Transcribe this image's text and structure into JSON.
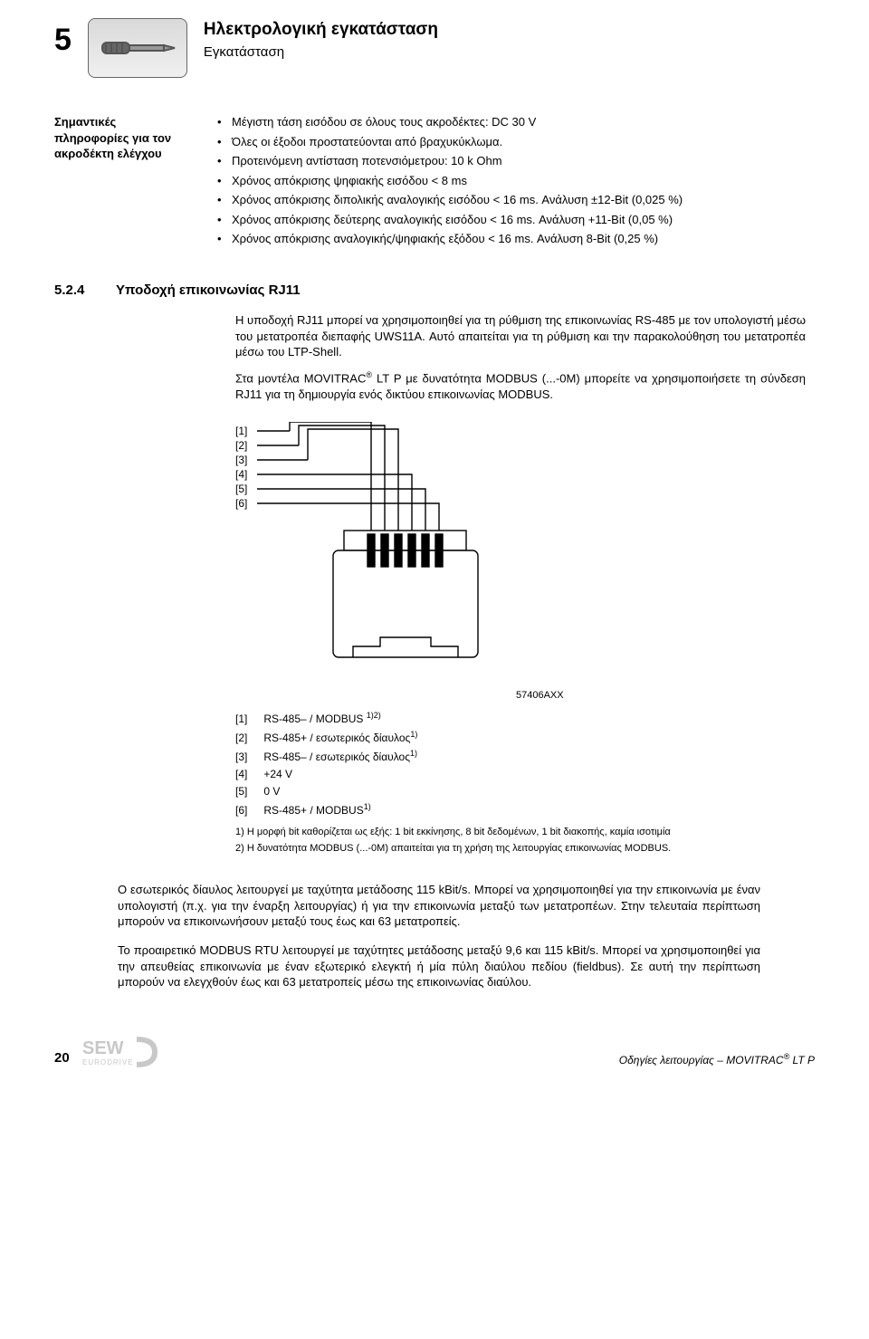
{
  "chapter_number": "5",
  "heading_main": "Ηλεκτρολογική εγκατάσταση",
  "heading_sub": "Εγκατάσταση",
  "side_label": "Σημαντικές πληροφορίες για τον ακροδέκτη ελέγχου",
  "bullets": [
    "Μέγιστη τάση εισόδου σε όλους τους ακροδέκτες: DC 30 V",
    "Όλες οι έξοδοι προστατεύονται από βραχυκύκλωμα.",
    "Προτεινόμενη αντίσταση ποτενσιόμετρου: 10 k Ohm",
    "Χρόνος απόκρισης ψηφιακής εισόδου < 8 ms",
    "Χρόνος απόκρισης διπολικής αναλογικής εισόδου < 16 ms. Ανάλυση ±12-Bit (0,025 %)",
    "Χρόνος απόκρισης δεύτερης αναλογικής εισόδου < 16 ms. Ανάλυση +11-Bit (0,05 %)",
    "Χρόνος απόκρισης αναλογικής/ψηφιακής εξόδου < 16 ms. Ανάλυση 8-Bit (0,25 %)"
  ],
  "section_num": "5.2.4",
  "section_title": "Υποδοχή επικοινωνίας RJ11",
  "para1": "Η υποδοχή RJ11 μπορεί να χρησιμοποιηθεί για τη ρύθμιση της επικοινωνίας RS-485 με τον υπολογιστή μέσω του μετατροπέα διεπαφής UWS11A. Αυτό απαιτείται για τη ρύθμιση και την παρακολούθηση του μετατροπέα μέσω του LTP-Shell.",
  "para2_pre": "Στα μοντέλα MOVITRAC",
  "para2_post": " LT P με δυνατότητα MODBUS (...-0M) μπορείτε να χρησιμοποιήσετε τη σύνδεση RJ11 για τη δημιουργία ενός δικτύου επικοινωνίας MODBUS.",
  "fig_labels": [
    "[1]",
    "[2]",
    "[3]",
    "[4]",
    "[5]",
    "[6]"
  ],
  "fig_ref": "57406AXX",
  "pin_list": [
    {
      "n": "[1]",
      "txt": "RS-485– / MODBUS ",
      "sup": "1)2)"
    },
    {
      "n": "[2]",
      "txt": "RS-485+ / εσωτερικός δίαυλος",
      "sup": "1)"
    },
    {
      "n": "[3]",
      "txt": "RS-485– / εσωτερικός δίαυλος",
      "sup": "1)"
    },
    {
      "n": "[4]",
      "txt": "+24 V",
      "sup": ""
    },
    {
      "n": "[5]",
      "txt": "0 V",
      "sup": ""
    },
    {
      "n": "[6]",
      "txt": "RS-485+ / MODBUS",
      "sup": "1)"
    }
  ],
  "footnotes": [
    "1)  Η μορφή bit καθορίζεται ως εξής: 1 bit εκκίνησης, 8 bit δεδομένων, 1 bit διακοπής, καμία ισοτιμία",
    "2)  Η δυνατότητα MODBUS (...-0M) απαιτείται για τη χρήση της λειτουργίας επικοινωνίας MODBUS."
  ],
  "para3": "Ο εσωτερικός δίαυλος λειτουργεί με ταχύτητα μετάδοσης 115 kBit/s. Μπορεί να χρησιμοποιηθεί για την επικοινωνία με έναν υπολογιστή (π.χ. για την έναρξη λειτουργίας) ή για την επικοινωνία μεταξύ των μετατροπέων. Στην τελευταία περίπτωση μπορούν να επικοινωνήσουν μεταξύ τους έως και 63 μετατροπείς.",
  "para4": "Το προαιρετικό MODBUS RTU λειτουργεί με ταχύτητες μετάδοσης μεταξύ 9,6 και 115 kBit/s. Μπορεί να χρησιμοποιηθεί για την απευθείας επικοινωνία με έναν εξωτερικό ελεγκτή ή μία πύλη διαύλου πεδίου (fieldbus). Σε αυτή την περίπτωση μπορούν να ελεγχθούν έως και 63 μετατροπείς μέσω της επικοινωνίας διαύλου.",
  "page_number": "20",
  "footer_right_pre": "Οδηγίες λειτουργίας – MOVITRAC",
  "footer_right_post": " LT P"
}
